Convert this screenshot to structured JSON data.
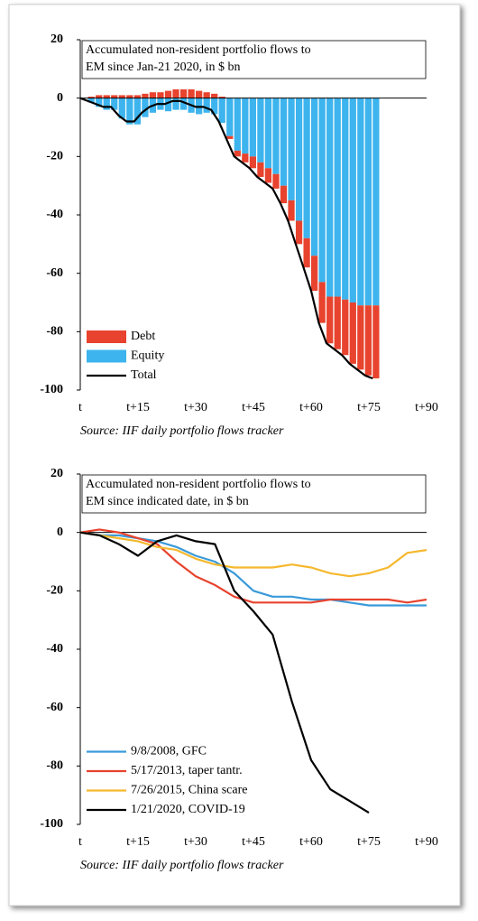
{
  "chart_data": [
    {
      "type": "bar",
      "stacked": true,
      "title": [
        "Accumulated non-resident portfolio flows to",
        "EM since Jan-21 2020, in $ bn"
      ],
      "source": "Source: IIF daily portfolio flows tracker",
      "x": [
        0,
        2,
        4,
        6,
        8,
        10,
        12,
        14,
        16,
        18,
        20,
        22,
        24,
        26,
        28,
        30,
        32,
        34,
        36,
        38,
        40,
        42,
        44,
        46,
        48,
        50,
        52,
        54,
        56,
        58,
        60,
        62,
        64,
        66,
        68,
        70,
        72,
        74,
        76
      ],
      "series": [
        {
          "name": "Debt",
          "type": "bar",
          "color": "#e8432e",
          "values": [
            0,
            0.5,
            1,
            1,
            1,
            1,
            1,
            1,
            1.5,
            2,
            2,
            2.5,
            3,
            3,
            3,
            2.5,
            2,
            1.5,
            0.5,
            -1,
            -2,
            -3,
            -4,
            -5,
            -5,
            -5,
            -6,
            -7,
            -8,
            -10,
            -12,
            -14,
            -16,
            -18,
            -19,
            -21,
            -22,
            -24,
            -25
          ]
        },
        {
          "name": "Equity",
          "type": "bar",
          "color": "#3db4ee",
          "values": [
            0,
            -1.5,
            -3,
            -4,
            -4,
            -7,
            -9,
            -9,
            -6.5,
            -5,
            -4,
            -4.5,
            -4,
            -4,
            -5,
            -5.5,
            -5,
            -5.5,
            -8.5,
            -13,
            -18,
            -19,
            -20,
            -22,
            -24,
            -26,
            -30,
            -35,
            -42,
            -48,
            -54,
            -63,
            -68,
            -68,
            -69,
            -70,
            -71,
            -71,
            -71
          ]
        },
        {
          "name": "Total",
          "type": "line",
          "color": "#000000",
          "values": [
            0,
            -1,
            -2,
            -3,
            -3,
            -6,
            -8,
            -8,
            -5,
            -3,
            -2,
            -2,
            -1,
            -1,
            -2,
            -3,
            -3,
            -4,
            -8,
            -14,
            -20,
            -22,
            -24,
            -27,
            -29,
            -31,
            -36,
            -42,
            -50,
            -58,
            -66,
            -77,
            -84,
            -86,
            -88,
            -91,
            -93,
            -95,
            -96
          ]
        }
      ],
      "xlim": [
        0,
        90
      ],
      "xticks": [
        {
          "value": 0,
          "label": "t"
        },
        {
          "value": 15,
          "label": "t+15"
        },
        {
          "value": 30,
          "label": "t+30"
        },
        {
          "value": 45,
          "label": "t+45"
        },
        {
          "value": 60,
          "label": "t+60"
        },
        {
          "value": 75,
          "label": "t+75"
        },
        {
          "value": 90,
          "label": "t+90"
        }
      ],
      "ylim": [
        -100,
        20
      ],
      "yticks": [
        -100,
        -80,
        -60,
        -40,
        -20,
        0,
        20
      ],
      "legend": "lower left"
    },
    {
      "type": "line",
      "title": [
        "Accumulated non-resident portfolio flows to",
        "EM since indicated date, in $ bn"
      ],
      "source": "Source: IIF daily portfolio flows tracker",
      "x": [
        0,
        5,
        10,
        15,
        20,
        25,
        30,
        35,
        40,
        45,
        50,
        55,
        60,
        65,
        70,
        75,
        80,
        85,
        90
      ],
      "series": [
        {
          "name": "9/8/2008, GFC",
          "color": "#3a9ad9",
          "values": [
            0,
            -1,
            -1,
            -2,
            -3,
            -5,
            -8,
            -10,
            -14,
            -20,
            -22,
            -22,
            -23,
            -23,
            -24,
            -25,
            -25,
            -25,
            -25
          ]
        },
        {
          "name": "5/17/2013, taper tantr.",
          "color": "#e8432e",
          "values": [
            0,
            1,
            0,
            -2,
            -4,
            -10,
            -15,
            -18,
            -22,
            -24,
            -24,
            -24,
            -24,
            -23,
            -23,
            -23,
            -23,
            -24,
            -23
          ]
        },
        {
          "name": "7/26/2015, China scare",
          "color": "#f5b82e",
          "values": [
            0,
            -1,
            -2,
            -3,
            -5,
            -6,
            -9,
            -11,
            -12,
            -12,
            -12,
            -11,
            -12,
            -14,
            -15,
            -14,
            -12,
            -7,
            -6
          ]
        },
        {
          "name": "1/21/2020, COVID-19",
          "color": "#000000",
          "values": [
            0,
            -1,
            -4,
            -8,
            -3,
            -1,
            -3,
            -4,
            -20,
            -27,
            -35,
            -58,
            -78,
            -88,
            -92,
            -96,
            null,
            null,
            null
          ]
        }
      ],
      "xlim": [
        0,
        90
      ],
      "xticks": [
        {
          "value": 0,
          "label": "t"
        },
        {
          "value": 15,
          "label": "t+15"
        },
        {
          "value": 30,
          "label": "t+30"
        },
        {
          "value": 45,
          "label": "t+45"
        },
        {
          "value": 60,
          "label": "t+60"
        },
        {
          "value": 75,
          "label": "t+75"
        },
        {
          "value": 90,
          "label": "t+90"
        }
      ],
      "ylim": [
        -100,
        20
      ],
      "yticks": [
        -100,
        -80,
        -60,
        -40,
        -20,
        0,
        20
      ],
      "legend": "lower left"
    }
  ]
}
